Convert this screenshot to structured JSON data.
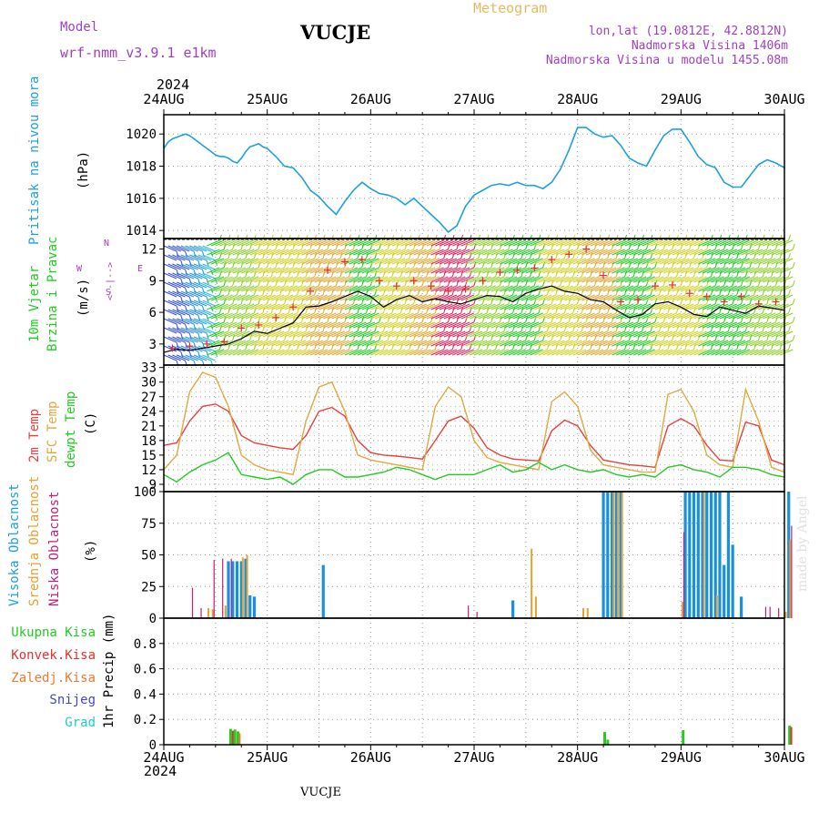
{
  "header": {
    "model_label": "Model",
    "model_name": "wrf-nmm_v3.9.1 e1km",
    "station": "VUCJE",
    "product": "Meteogram",
    "lonlat": "lon,lat (19.0812E, 42.8812N)",
    "elevation": "Nadmorska Visina 1406m",
    "model_elevation": "Nadmorska Visina u modelu 1455.08m",
    "year_top": "2024",
    "year_bottom": "2024",
    "footer_station": "VUCJE",
    "credit": "made by Angel"
  },
  "colors": {
    "pressure": "#1ca0e0",
    "t2m": "#e8403c",
    "tsfc": "#e0a840",
    "dewpt": "#22cc22",
    "high_cloud": "#1890e0",
    "mid_cloud": "#e8a030",
    "low_cloud": "#c0207a",
    "total_precip": "#22cc22",
    "conv_precip": "#e83030",
    "frozen_precip": "#f07830",
    "snow": "#4444cc",
    "graupel": "#22cccc",
    "wind_speed_line": "#000000",
    "gust_marker": "#e83030",
    "model_label": "#a040c0",
    "info_text": "#a040c0",
    "product_title": "#e8b860"
  },
  "x_axis": {
    "start": "2024-08-24T00:00",
    "end": "2024-08-30T00:00",
    "tick_labels": [
      "24AUG",
      "25AUG",
      "26AUG",
      "27AUG",
      "28AUG",
      "29AUG",
      "30AUG"
    ]
  },
  "panels": {
    "pressure": {
      "ylabel1": "Pritisak na nivou mora",
      "ylabel2": "(hPa)"
    },
    "wind": {
      "ylabel1": "10m Vjetar",
      "ylabel2": "Brzina i Pravac",
      "ylabel3": "(m/s)",
      "compass_w": "W",
      "compass_e": "E",
      "compass_arrows": "<--|-->",
      "compass_n": "N",
      "compass_s": "S"
    },
    "temp": {
      "ylabel1": "2m Temp",
      "ylabel2": "SFC Temp",
      "ylabel3": "dewpt Temp",
      "ylabel4": "(C)"
    },
    "cloud": {
      "ylabel1": "Visoka Oblacnost",
      "ylabel2": "Srednja Oblacnost",
      "ylabel3": "Niska Oblacnost",
      "ylabel4": "(%)"
    },
    "precip": {
      "ylabel1": "1hr Precip (mm)",
      "legend": [
        "Ukupna Kisa",
        "Konvek.Kisa",
        "Zaledj.Kisa",
        "Snijeg",
        "Grad"
      ]
    }
  },
  "chart_data": [
    {
      "type": "line",
      "name": "pressure",
      "ylim": [
        1013.5,
        1021.2
      ],
      "yticks": [
        1014,
        1016,
        1018,
        1020
      ],
      "series": [
        {
          "x": [
            0,
            1,
            2,
            3,
            4,
            5,
            6,
            7,
            8,
            9,
            10,
            11,
            12,
            13,
            14,
            15,
            16,
            17,
            18,
            19,
            20,
            21,
            22,
            23,
            24,
            26,
            28,
            30,
            32,
            34,
            36,
            38,
            40,
            42,
            44,
            46,
            48,
            50,
            52,
            54,
            56,
            58,
            60,
            62,
            64,
            66,
            68,
            70,
            72,
            74,
            76,
            78,
            80,
            82,
            84,
            86,
            88,
            90,
            92,
            94,
            96,
            98,
            100,
            102,
            104,
            106,
            108,
            110,
            112,
            114,
            116,
            118,
            120,
            122,
            124,
            126,
            128,
            130,
            132,
            134,
            136,
            138,
            140,
            142,
            144
          ],
          "values": [
            1019.1,
            1019.5,
            1019.7,
            1019.8,
            1019.9,
            1020.0,
            1019.9,
            1019.7,
            1019.5,
            1019.3,
            1019.1,
            1018.9,
            1018.7,
            1018.6,
            1018.6,
            1018.5,
            1018.3,
            1018.2,
            1018.5,
            1018.9,
            1019.2,
            1019.3,
            1019.4,
            1019.2,
            1019.1,
            1018.6,
            1018.0,
            1017.9,
            1017.3,
            1016.5,
            1016.1,
            1015.5,
            1015.0,
            1015.8,
            1016.5,
            1017.0,
            1016.6,
            1016.3,
            1016.2,
            1016.0,
            1015.6,
            1016.0,
            1015.5,
            1015.0,
            1014.5,
            1013.9,
            1014.3,
            1015.5,
            1016.2,
            1016.5,
            1016.8,
            1016.9,
            1016.8,
            1017.0,
            1016.8,
            1016.8,
            1016.6,
            1017.0,
            1017.8,
            1019.0,
            1020.4,
            1020.4,
            1020.0,
            1019.8,
            1019.9,
            1019.3,
            1018.5,
            1018.2,
            1018.0,
            1019.0,
            1019.9,
            1020.3,
            1020.3,
            1019.5,
            1018.6,
            1018.1,
            1017.9,
            1017.0,
            1016.7,
            1016.7,
            1017.4,
            1018.1,
            1018.4,
            1018.2,
            1017.9
          ]
        }
      ]
    },
    {
      "type": "line",
      "name": "wind",
      "ylim": [
        1,
        13
      ],
      "yticks": [
        3,
        6,
        9,
        12
      ],
      "series": [
        {
          "name": "speed",
          "x": [
            0,
            3,
            6,
            9,
            12,
            15,
            18,
            21,
            24,
            27,
            30,
            33,
            36,
            39,
            42,
            45,
            48,
            51,
            54,
            57,
            60,
            63,
            66,
            69,
            72,
            75,
            78,
            81,
            84,
            87,
            90,
            93,
            96,
            99,
            102,
            105,
            108,
            111,
            114,
            117,
            120,
            123,
            126,
            129,
            132,
            135,
            138,
            141,
            144
          ],
          "values": [
            2.2,
            2.5,
            2.4,
            2.6,
            2.8,
            3.0,
            3.5,
            4.2,
            4.0,
            4.5,
            5.0,
            6.5,
            6.6,
            7.0,
            7.5,
            8.0,
            7.5,
            6.5,
            7.2,
            7.6,
            7.0,
            7.3,
            7.0,
            6.8,
            7.2,
            7.6,
            7.5,
            7.0,
            7.8,
            8.2,
            8.5,
            8.0,
            7.8,
            7.2,
            7.0,
            6.2,
            5.5,
            5.8,
            6.8,
            7.0,
            6.5,
            5.8,
            5.6,
            6.5,
            6.2,
            5.9,
            6.6,
            6.4,
            6.2
          ]
        }
      ],
      "gusts": {
        "x": [
          2,
          6,
          10,
          14,
          18,
          22,
          26,
          30,
          34,
          38,
          42,
          46,
          50,
          54,
          58,
          62,
          66,
          70,
          74,
          78,
          82,
          86,
          90,
          94,
          98,
          102,
          106,
          110,
          114,
          118,
          122,
          126,
          130,
          134,
          138,
          142
        ],
        "values": [
          2.6,
          2.8,
          3.0,
          3.2,
          4.5,
          4.8,
          5.5,
          6.5,
          8.0,
          10.0,
          10.8,
          11.0,
          9.0,
          8.5,
          9.0,
          8.5,
          8.0,
          8.2,
          9.0,
          9.8,
          10.0,
          10.2,
          11.0,
          11.5,
          12.0,
          9.5,
          7.0,
          7.2,
          8.5,
          8.6,
          7.8,
          7.5,
          7.0,
          7.5,
          6.8,
          7.0
        ]
      },
      "barb_color_bands": [
        {
          "from": 0,
          "to": 4,
          "color": "#3050e8"
        },
        {
          "from": 4,
          "to": 8,
          "color": "#2090e8"
        },
        {
          "from": 8,
          "to": 10,
          "color": "#28b8e0"
        },
        {
          "from": 10,
          "to": 12,
          "color": "#22cc22"
        },
        {
          "from": 12,
          "to": 20,
          "color": "#8ad028"
        },
        {
          "from": 20,
          "to": 32,
          "color": "#d0d020"
        },
        {
          "from": 32,
          "to": 42,
          "color": "#e0a830"
        },
        {
          "from": 42,
          "to": 48,
          "color": "#22cc22"
        },
        {
          "from": 48,
          "to": 56,
          "color": "#d0d020"
        },
        {
          "from": 56,
          "to": 62,
          "color": "#e0a830"
        },
        {
          "from": 62,
          "to": 70,
          "color": "#e8205a"
        },
        {
          "from": 70,
          "to": 78,
          "color": "#8ad028"
        },
        {
          "from": 78,
          "to": 86,
          "color": "#22cc22"
        },
        {
          "from": 86,
          "to": 96,
          "color": "#d0d020"
        },
        {
          "from": 96,
          "to": 104,
          "color": "#e0a830"
        },
        {
          "from": 104,
          "to": 112,
          "color": "#22cc22"
        },
        {
          "from": 112,
          "to": 124,
          "color": "#d0d020"
        },
        {
          "from": 124,
          "to": 134,
          "color": "#22cc22"
        },
        {
          "from": 134,
          "to": 144,
          "color": "#8ad028"
        }
      ]
    },
    {
      "type": "line",
      "name": "temperature",
      "ylim": [
        7.5,
        33.5
      ],
      "yticks": [
        9,
        12,
        15,
        18,
        21,
        24,
        27,
        30,
        33
      ],
      "series": [
        {
          "name": "2m Temp",
          "x": [
            0,
            3,
            6,
            9,
            12,
            15,
            18,
            21,
            24,
            27,
            30,
            33,
            36,
            39,
            42,
            45,
            48,
            51,
            54,
            57,
            60,
            63,
            66,
            69,
            72,
            75,
            78,
            81,
            84,
            87,
            90,
            93,
            96,
            99,
            102,
            105,
            108,
            111,
            114,
            117,
            120,
            123,
            126,
            129,
            132,
            135,
            138,
            141,
            144
          ],
          "values": [
            17.0,
            17.5,
            22.0,
            25.0,
            25.5,
            24.0,
            19.0,
            17.5,
            17.0,
            16.5,
            16.2,
            19.0,
            24.0,
            24.8,
            23.0,
            18.0,
            15.5,
            15.0,
            14.8,
            14.5,
            14.2,
            18.0,
            22.0,
            23.0,
            20.5,
            16.5,
            15.0,
            14.2,
            14.0,
            13.8,
            20.0,
            22.2,
            21.0,
            17.0,
            14.0,
            13.5,
            13.0,
            12.8,
            12.5,
            21.0,
            22.5,
            21.0,
            17.0,
            14.0,
            13.8,
            21.8,
            21.0,
            14.0,
            13.0
          ]
        },
        {
          "name": "SFC Temp",
          "x": [
            0,
            3,
            6,
            9,
            12,
            15,
            18,
            21,
            24,
            27,
            30,
            33,
            36,
            39,
            42,
            45,
            48,
            51,
            54,
            57,
            60,
            63,
            66,
            69,
            72,
            75,
            78,
            81,
            84,
            87,
            90,
            93,
            96,
            99,
            102,
            105,
            108,
            111,
            114,
            117,
            120,
            123,
            126,
            129,
            132,
            135,
            138,
            141,
            144
          ],
          "values": [
            12.0,
            15.0,
            28.0,
            32.0,
            31.0,
            25.0,
            15.0,
            13.0,
            12.0,
            11.5,
            11.0,
            22.0,
            29.0,
            30.0,
            24.0,
            15.0,
            14.0,
            13.5,
            13.0,
            12.5,
            12.0,
            25.0,
            29.0,
            27.0,
            18.0,
            14.5,
            13.5,
            13.0,
            12.5,
            12.0,
            26.0,
            28.0,
            25.0,
            16.0,
            13.0,
            12.5,
            12.0,
            11.5,
            11.5,
            27.5,
            28.5,
            24.0,
            15.0,
            13.0,
            12.5,
            28.5,
            22.0,
            12.5,
            11.5
          ]
        },
        {
          "name": "dewpt Temp",
          "x": [
            0,
            3,
            6,
            9,
            12,
            15,
            18,
            21,
            24,
            27,
            30,
            33,
            36,
            39,
            42,
            45,
            48,
            51,
            54,
            57,
            60,
            63,
            66,
            69,
            72,
            75,
            78,
            81,
            84,
            87,
            90,
            93,
            96,
            99,
            102,
            105,
            108,
            111,
            114,
            117,
            120,
            123,
            126,
            129,
            132,
            135,
            138,
            141,
            144
          ],
          "values": [
            11.0,
            9.5,
            11.5,
            13.0,
            14.0,
            15.5,
            11.0,
            10.5,
            10.0,
            10.5,
            9.0,
            11.0,
            12.0,
            12.0,
            10.5,
            10.5,
            11.0,
            11.5,
            12.5,
            12.0,
            11.0,
            10.0,
            11.0,
            11.0,
            11.0,
            12.0,
            13.0,
            11.5,
            12.0,
            13.5,
            12.0,
            13.0,
            12.0,
            11.5,
            12.0,
            11.0,
            10.5,
            11.0,
            10.5,
            12.5,
            13.0,
            12.0,
            11.5,
            10.5,
            12.5,
            12.5,
            12.0,
            11.0,
            10.5
          ]
        }
      ]
    },
    {
      "type": "bar",
      "name": "cloud",
      "ylim": [
        0,
        100
      ],
      "yticks": [
        0,
        25,
        50,
        75,
        100
      ],
      "series": [
        {
          "name": "Visoka Oblacnost",
          "x": [
            15,
            16,
            17,
            18,
            19,
            20,
            21,
            37,
            81,
            102,
            103,
            104,
            105,
            106,
            121,
            122,
            123,
            124,
            125,
            126,
            127,
            128,
            129,
            130,
            131,
            132,
            134,
            145
          ],
          "values": [
            45,
            45,
            45,
            45,
            47,
            18,
            17,
            42,
            14,
            100,
            100,
            100,
            100,
            100,
            100,
            100,
            100,
            100,
            100,
            100,
            100,
            100,
            100,
            42,
            100,
            58,
            17,
            100
          ]
        },
        {
          "name": "Srednja Oblacnost",
          "x": [
            10,
            11,
            14,
            18,
            19,
            85,
            86,
            97,
            98,
            104,
            105,
            106,
            120,
            125,
            128,
            144,
            145
          ],
          "values": [
            8,
            7,
            10,
            48,
            50,
            55,
            17,
            8,
            8,
            100,
            100,
            100,
            13,
            100,
            18,
            5,
            62
          ]
        },
        {
          "name": "Niska Oblacnost",
          "x": [
            7,
            9,
            12,
            14,
            16,
            71,
            73,
            121,
            140,
            141,
            143,
            146
          ],
          "values": [
            24,
            8,
            46,
            47,
            47,
            10,
            5,
            68,
            9,
            9,
            8,
            73
          ]
        }
      ]
    },
    {
      "type": "bar",
      "name": "precip",
      "ylim": [
        0,
        1.0
      ],
      "yticks": [
        0,
        0.2,
        0.4,
        0.6,
        0.8
      ],
      "series": [
        {
          "name": "Ukupna Kisa",
          "x": [
            15.5,
            16.5,
            17.2,
            102.3,
            103.0,
            120.5,
            145.2
          ],
          "values": [
            0.125,
            0.12,
            0.105,
            0.1,
            0.04,
            0.115,
            0.15
          ]
        },
        {
          "name": "Konvek.Kisa",
          "x": [
            16.0,
            145.6
          ],
          "values": [
            0.11,
            0.14
          ]
        },
        {
          "name": "Zaledj.Kisa",
          "x": [
            17.6
          ],
          "values": [
            0.09
          ]
        }
      ]
    }
  ]
}
